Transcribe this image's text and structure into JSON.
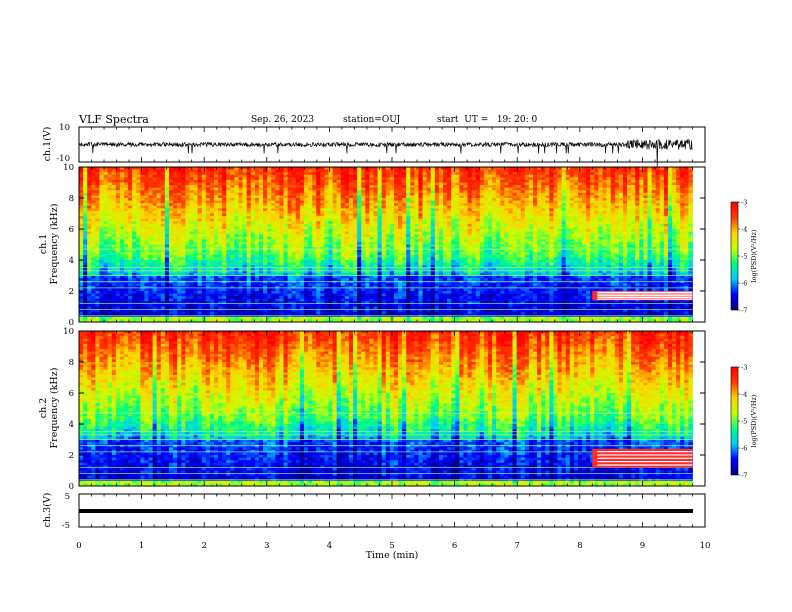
{
  "header": {
    "title": "VLF Spectra",
    "date": "Sep. 26, 2023",
    "station": "station=OUJ",
    "start": "start  UT =   19: 20: 0"
  },
  "chart_data": {
    "type": "heatmap",
    "title": "VLF Spectra",
    "xlabel": "Time  (min)",
    "xlim": [
      0,
      10
    ],
    "x_ticks": [
      "0",
      "1",
      "2",
      "3",
      "4",
      "5",
      "6",
      "7",
      "8",
      "9",
      "10"
    ],
    "data_end_min": 9.8,
    "panels": [
      {
        "id": "ch1-waveform",
        "type": "line",
        "ylabel": "ch.1(V)",
        "ylim": [
          -10,
          10
        ],
        "y_ticks": [
          "10",
          "-10"
        ],
        "description_values": {
          "baseline": 0,
          "typical_amplitude": 2,
          "burst_start_min": 8.75,
          "burst_amplitude": 5
        }
      },
      {
        "id": "ch1-spectrogram",
        "type": "heatmap",
        "ylabel_line1": "ch.1",
        "ylabel_line2": "Frequency  (kHz)",
        "ylim": [
          0,
          10
        ],
        "y_ticks": [
          "0",
          "2",
          "4",
          "6",
          "8",
          "10"
        ],
        "colorbar": {
          "label": "log(PSD)(V²/Hz)",
          "range": [
            -7,
            -3
          ],
          "ticks": [
            "-3",
            "-4",
            "-5",
            "-6",
            "-7"
          ]
        },
        "lines_khz": [
          0.4,
          0.8,
          1.2,
          2.2,
          2.6,
          3.0,
          3.3,
          3.5,
          4.7
        ],
        "emission_band_khz": [
          1.4,
          2.0
        ],
        "emission_start_min": 8.2
      },
      {
        "id": "ch2-spectrogram",
        "type": "heatmap",
        "ylabel_line1": "ch.2",
        "ylabel_line2": "Frequency  (kHz)",
        "ylim": [
          0,
          10
        ],
        "y_ticks": [
          "0",
          "2",
          "4",
          "6",
          "8",
          "10"
        ],
        "colorbar": {
          "label": "log(PSD)(V²/Hz)",
          "range": [
            -7,
            -3
          ],
          "ticks": [
            "-3",
            "-4",
            "-5",
            "-6",
            "-7"
          ]
        },
        "lines_khz": [
          0.4,
          0.8,
          1.2,
          2.2,
          2.6,
          3.0,
          3.3,
          3.5,
          4.7
        ],
        "emission_band_khz": [
          1.2,
          2.4
        ],
        "emission_start_min": 8.2
      },
      {
        "id": "ch3-waveform",
        "type": "line",
        "ylabel": "ch.3(V)",
        "ylim": [
          -5,
          5
        ],
        "y_ticks": [
          "5",
          "-5"
        ],
        "description_values": {
          "constant_level": 0
        }
      }
    ]
  },
  "colors": {
    "colormap": [
      "#00007f",
      "#0000ff",
      "#00c8ff",
      "#00ff7f",
      "#c8ff00",
      "#ffd200",
      "#ff3c00",
      "#ff0000"
    ],
    "waveform": "#000000"
  }
}
